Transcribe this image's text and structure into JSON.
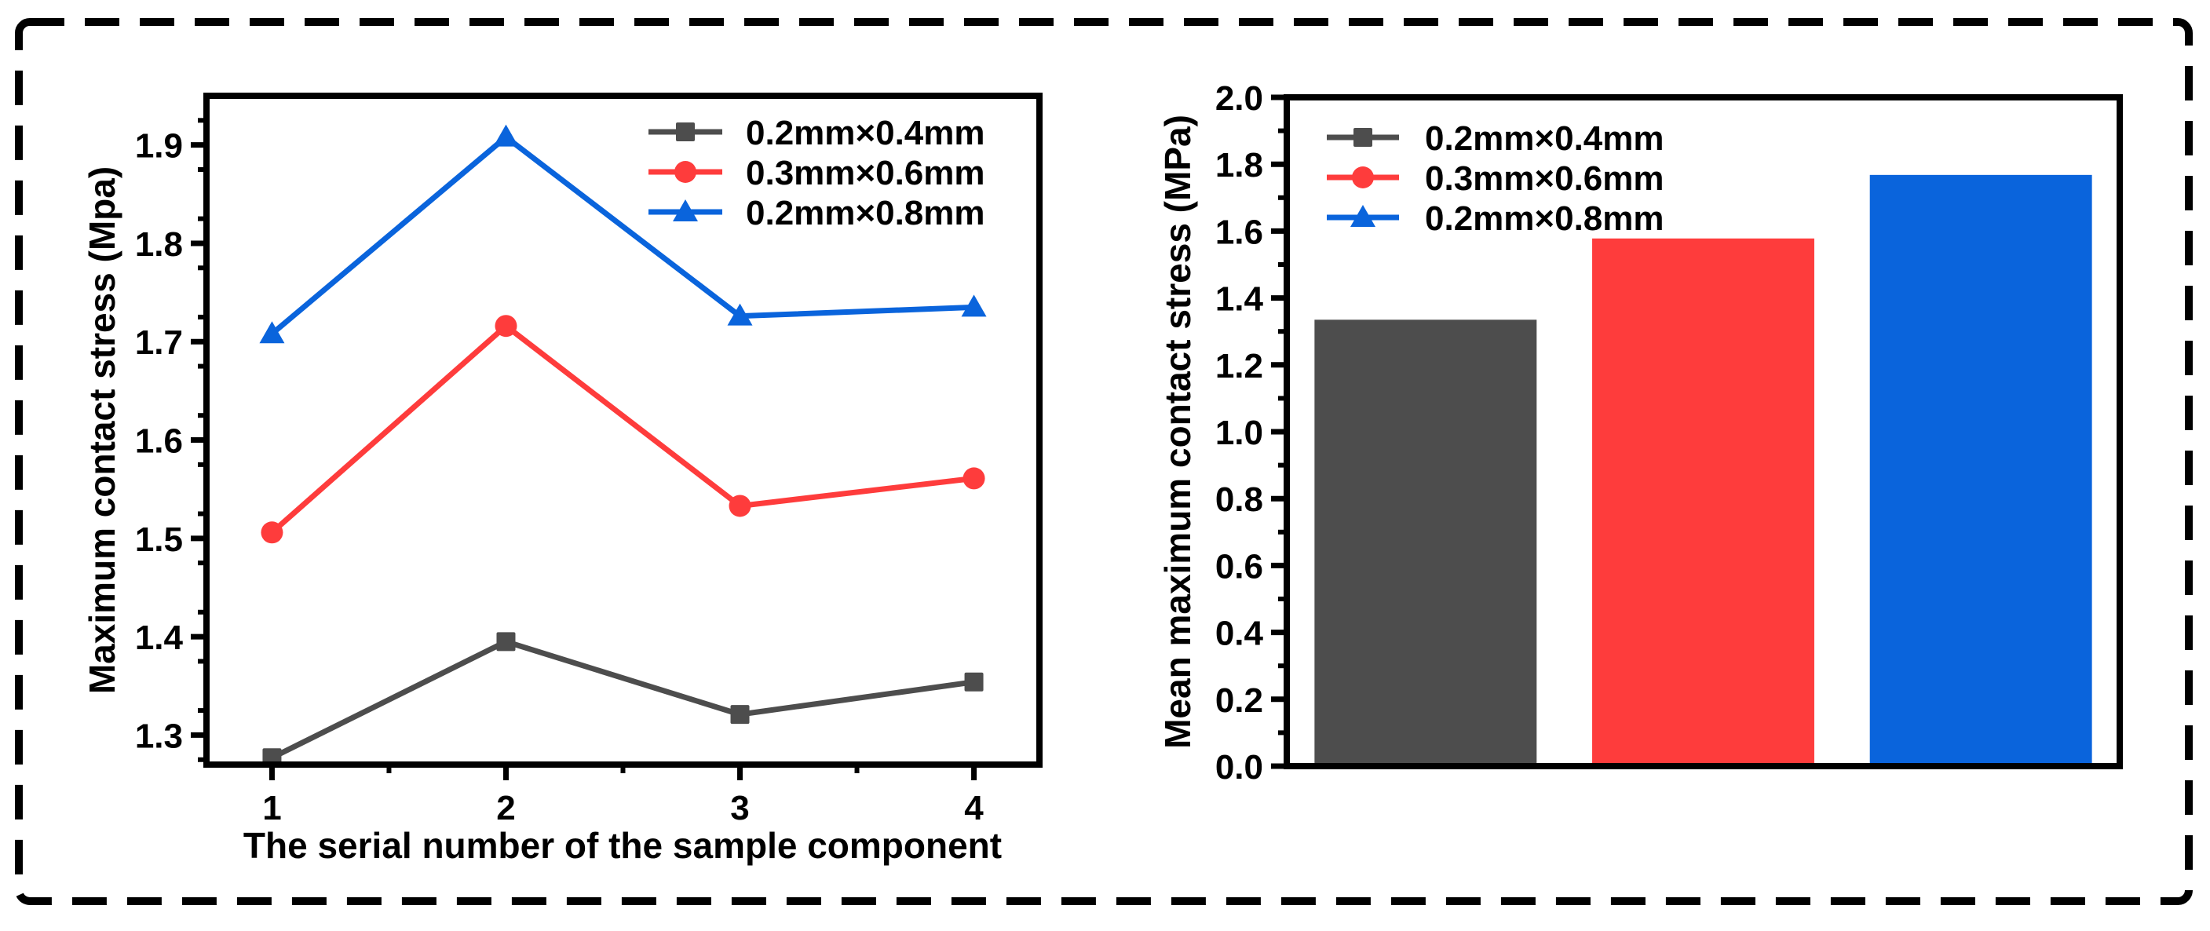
{
  "colors": {
    "series": [
      "#4d4d4d",
      "#fe3c3c",
      "#0a64dc"
    ],
    "frame": "#000000"
  },
  "chart_data": [
    {
      "type": "line",
      "x": [
        1,
        2,
        3,
        4
      ],
      "xticks": [
        "1",
        "2",
        "3",
        "4"
      ],
      "xlabel": "The serial number of the sample component",
      "ylabel": "Maximum contact stress (Mpa)",
      "ylim": [
        1.27,
        1.95
      ],
      "yticks": [
        "1.3",
        "1.4",
        "1.5",
        "1.6",
        "1.7",
        "1.8",
        "1.9"
      ],
      "legend_position": "top-right",
      "series": [
        {
          "name": "0.2mm×0.4mm",
          "marker": "square",
          "values": [
            1.277,
            1.395,
            1.321,
            1.354
          ]
        },
        {
          "name": "0.3mm×0.6mm",
          "marker": "circle",
          "values": [
            1.506,
            1.716,
            1.533,
            1.561
          ]
        },
        {
          "name": "0.2mm×0.8mm",
          "marker": "triangle",
          "values": [
            1.708,
            1.908,
            1.726,
            1.735
          ]
        }
      ]
    },
    {
      "type": "bar",
      "categories": [
        "0.2mm×0.4mm",
        "0.3mm×0.6mm",
        "0.2mm×0.8mm"
      ],
      "values": [
        1.335,
        1.578,
        1.768
      ],
      "xlabel": "",
      "ylabel": "Mean maximum contact stress (MPa)",
      "ylim": [
        0,
        2.0
      ],
      "yticks": [
        "0.0",
        "0.2",
        "0.4",
        "0.6",
        "0.8",
        "1.0",
        "1.2",
        "1.4",
        "1.6",
        "1.8",
        "2.0"
      ],
      "legend_position": "top-left",
      "legend": [
        {
          "name": "0.2mm×0.4mm",
          "marker": "square"
        },
        {
          "name": "0.3mm×0.6mm",
          "marker": "circle"
        },
        {
          "name": "0.2mm×0.8mm",
          "marker": "triangle"
        }
      ]
    }
  ]
}
